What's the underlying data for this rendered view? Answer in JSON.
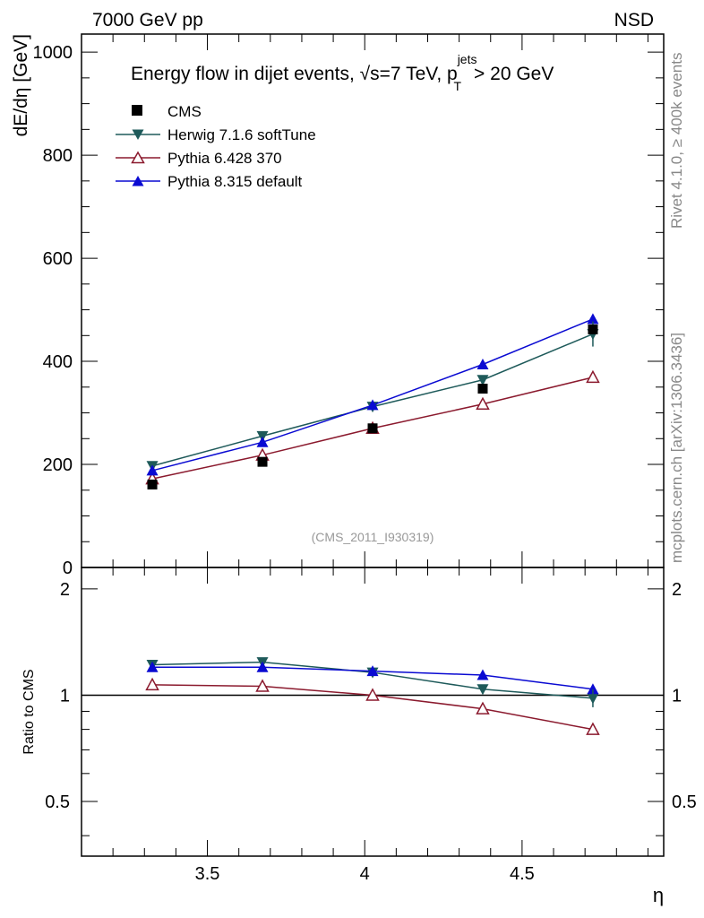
{
  "header": {
    "left": "7000 GeV pp",
    "right": "NSD"
  },
  "side_labels": {
    "top": "Rivet 4.1.0, ≥ 400k events",
    "bottom": "mcplots.cern.ch [arXiv:1306.3436]"
  },
  "chart_data": {
    "type": "line",
    "title_main": "Energy flow in dijet events, ",
    "title_sqrt": "√s",
    "title_energy": "=7 TeV, p",
    "title_sup": "jets",
    "title_sub": "T",
    "title_tail": "> 20 GeV",
    "watermark": "(CMS_2011_I930319)",
    "xlabel": "η",
    "ylabel": "dE/dη [GeV]",
    "ratio_ylabel": "Ratio to CMS",
    "xlim": [
      3.1,
      4.95
    ],
    "ylim": [
      0,
      1035
    ],
    "ratio_ylim": [
      0.35,
      2.3
    ],
    "x_ticks": [
      3.5,
      4,
      4.5
    ],
    "x_tick_labels": [
      "3.5",
      "4",
      "4.5"
    ],
    "y_ticks": [
      0,
      200,
      400,
      600,
      800,
      1000
    ],
    "y_tick_labels": [
      "0",
      "200",
      "400",
      "600",
      "800",
      "1000"
    ],
    "ratio_ticks": [
      0.5,
      1,
      2
    ],
    "ratio_tick_labels": [
      "0.5",
      "1",
      "2"
    ],
    "x": [
      3.325,
      3.675,
      4.025,
      4.375,
      4.725
    ],
    "data": {
      "name": "CMS",
      "values": [
        161,
        205,
        270,
        347,
        462
      ],
      "color": "#000000"
    },
    "series": [
      {
        "name": "Herwig 7.1.6 softTune",
        "values": [
          197,
          255,
          312,
          364,
          453
        ],
        "ratio": [
          1.22,
          1.24,
          1.16,
          1.04,
          0.98
        ],
        "color": "#1e5a5a",
        "marker": "tri-down"
      },
      {
        "name": "Pythia 6.428 370",
        "values": [
          172,
          218,
          270,
          317,
          369
        ],
        "ratio": [
          1.07,
          1.06,
          1.0,
          0.915,
          0.8
        ],
        "color": "#8b1a2e",
        "marker": "tri-up-open"
      },
      {
        "name": "Pythia 8.315 default",
        "values": [
          188,
          243,
          315,
          394,
          482
        ],
        "ratio": [
          1.2,
          1.2,
          1.17,
          1.14,
          1.04
        ],
        "color": "#0a0ad2",
        "marker": "tri-up"
      }
    ]
  }
}
